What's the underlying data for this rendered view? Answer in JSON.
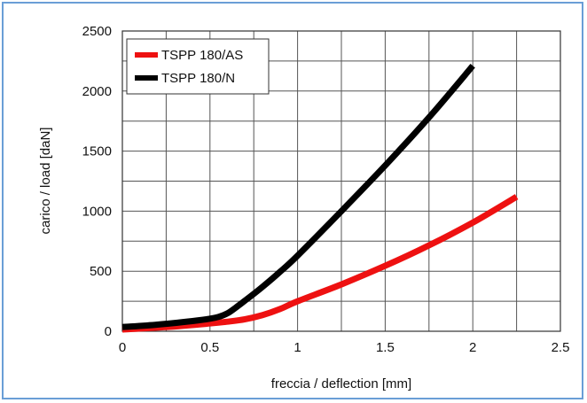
{
  "chart_data": {
    "type": "line",
    "title": "",
    "xlabel": "freccia / deflection [mm]",
    "ylabel": "carico / load [daN]",
    "xlim": [
      0,
      2.5
    ],
    "ylim": [
      0,
      2500
    ],
    "x_ticks": [
      0,
      0.5,
      1,
      1.5,
      2,
      2.5
    ],
    "x_tick_labels": [
      "0",
      "0.5",
      "1",
      "1.5",
      "2",
      "2.5"
    ],
    "y_ticks": [
      0,
      500,
      1000,
      1500,
      2000,
      2500
    ],
    "y_tick_labels": [
      "0",
      "500",
      "1000",
      "1500",
      "2000",
      "2500"
    ],
    "x_minor_step": 0.25,
    "y_minor_step": 250,
    "grid": true,
    "legend_position": "top-left",
    "series": [
      {
        "name": "TSPP 180/AS",
        "color": "#ee1111",
        "points": [
          [
            0,
            15
          ],
          [
            0.25,
            35
          ],
          [
            0.5,
            65
          ],
          [
            0.6,
            80
          ],
          [
            0.7,
            100
          ],
          [
            0.8,
            135
          ],
          [
            0.9,
            185
          ],
          [
            1.0,
            250
          ],
          [
            1.25,
            390
          ],
          [
            1.5,
            545
          ],
          [
            1.75,
            715
          ],
          [
            2.0,
            905
          ],
          [
            2.25,
            1120
          ]
        ]
      },
      {
        "name": "TSPP 180/N",
        "color": "#000000",
        "points": [
          [
            0,
            35
          ],
          [
            0.2,
            55
          ],
          [
            0.4,
            85
          ],
          [
            0.5,
            105
          ],
          [
            0.55,
            120
          ],
          [
            0.6,
            150
          ],
          [
            0.65,
            200
          ],
          [
            0.7,
            255
          ],
          [
            0.8,
            370
          ],
          [
            0.9,
            495
          ],
          [
            1.0,
            630
          ],
          [
            1.25,
            1000
          ],
          [
            1.5,
            1380
          ],
          [
            1.75,
            1780
          ],
          [
            2.0,
            2210
          ]
        ]
      }
    ]
  }
}
